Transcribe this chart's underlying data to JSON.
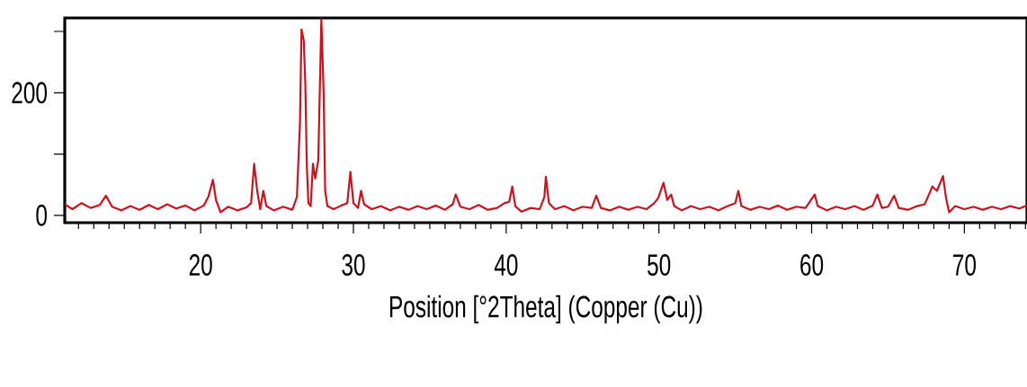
{
  "chart_data": {
    "type": "line",
    "xlabel": "Position [°2Theta] (Copper (Cu))",
    "xlim": [
      11.1,
      74.1
    ],
    "ylim": [
      -12,
      322
    ],
    "xticks": [
      {
        "value": 12,
        "label": null
      },
      {
        "value": 13,
        "label": null
      },
      {
        "value": 14,
        "label": null
      },
      {
        "value": 15,
        "label": null
      },
      {
        "value": 16,
        "label": null
      },
      {
        "value": 17,
        "label": null
      },
      {
        "value": 18,
        "label": null
      },
      {
        "value": 19,
        "label": null
      },
      20,
      {
        "value": 21,
        "label": null
      },
      {
        "value": 22,
        "label": null
      },
      {
        "value": 23,
        "label": null
      },
      {
        "value": 24,
        "label": null
      },
      {
        "value": 25,
        "label": null
      },
      {
        "value": 26,
        "label": null
      },
      {
        "value": 27,
        "label": null
      },
      {
        "value": 28,
        "label": null
      },
      {
        "value": 29,
        "label": null
      },
      30,
      {
        "value": 31,
        "label": null
      },
      {
        "value": 32,
        "label": null
      },
      {
        "value": 33,
        "label": null
      },
      {
        "value": 34,
        "label": null
      },
      {
        "value": 35,
        "label": null
      },
      {
        "value": 36,
        "label": null
      },
      {
        "value": 37,
        "label": null
      },
      {
        "value": 38,
        "label": null
      },
      {
        "value": 39,
        "label": null
      },
      40,
      {
        "value": 41,
        "label": null
      },
      {
        "value": 42,
        "label": null
      },
      {
        "value": 43,
        "label": null
      },
      {
        "value": 44,
        "label": null
      },
      {
        "value": 45,
        "label": null
      },
      {
        "value": 46,
        "label": null
      },
      {
        "value": 47,
        "label": null
      },
      {
        "value": 48,
        "label": null
      },
      {
        "value": 49,
        "label": null
      },
      50,
      {
        "value": 51,
        "label": null
      },
      {
        "value": 52,
        "label": null
      },
      {
        "value": 53,
        "label": null
      },
      {
        "value": 54,
        "label": null
      },
      {
        "value": 55,
        "label": null
      },
      {
        "value": 56,
        "label": null
      },
      {
        "value": 57,
        "label": null
      },
      {
        "value": 58,
        "label": null
      },
      {
        "value": 59,
        "label": null
      },
      60,
      {
        "value": 61,
        "label": null
      },
      {
        "value": 62,
        "label": null
      },
      {
        "value": 63,
        "label": null
      },
      {
        "value": 64,
        "label": null
      },
      {
        "value": 65,
        "label": null
      },
      {
        "value": 66,
        "label": null
      },
      {
        "value": 67,
        "label": null
      },
      {
        "value": 68,
        "label": null
      },
      {
        "value": 69,
        "label": null
      },
      70,
      {
        "value": 71,
        "label": null
      },
      {
        "value": 72,
        "label": null
      },
      {
        "value": 73,
        "label": null
      },
      {
        "value": 74,
        "label": null
      }
    ],
    "yticks": [
      0,
      {
        "value": 100,
        "label": null
      },
      200,
      {
        "value": 300,
        "label": null
      }
    ],
    "series": [
      {
        "color": "#c8141e",
        "x": [
          11.1,
          11.6,
          12.2,
          12.8,
          13.4,
          13.8,
          14.2,
          14.8,
          15.4,
          16.0,
          16.6,
          17.2,
          17.8,
          18.4,
          19.0,
          19.6,
          20.2,
          20.5,
          20.8,
          21.0,
          21.3,
          21.8,
          22.4,
          23.0,
          23.3,
          23.5,
          23.7,
          23.9,
          24.1,
          24.3,
          24.8,
          25.4,
          26.0,
          26.3,
          26.5,
          26.6,
          26.75,
          26.85,
          26.95,
          27.05,
          27.2,
          27.35,
          27.5,
          27.7,
          27.9,
          28.05,
          28.15,
          28.3,
          28.7,
          29.2,
          29.6,
          29.8,
          30.0,
          30.3,
          30.5,
          30.7,
          31.2,
          31.8,
          32.4,
          33.0,
          33.6,
          34.2,
          34.8,
          35.4,
          36.0,
          36.5,
          36.7,
          37.0,
          37.6,
          38.2,
          38.8,
          39.4,
          39.9,
          40.2,
          40.4,
          40.6,
          41.0,
          41.6,
          42.2,
          42.5,
          42.6,
          42.8,
          43.2,
          43.8,
          44.4,
          45.0,
          45.6,
          45.9,
          46.2,
          46.8,
          47.4,
          48.0,
          48.6,
          49.2,
          49.7,
          49.95,
          50.3,
          50.55,
          50.8,
          51.0,
          51.5,
          52.1,
          52.7,
          53.3,
          53.9,
          54.5,
          55.0,
          55.2,
          55.4,
          56.0,
          56.6,
          57.2,
          57.8,
          58.4,
          59.0,
          59.6,
          60.2,
          60.4,
          61.0,
          61.6,
          62.2,
          62.8,
          63.4,
          64.0,
          64.3,
          64.6,
          65.0,
          65.4,
          65.7,
          66.3,
          66.9,
          67.4,
          67.7,
          67.9,
          68.2,
          68.6,
          68.8,
          69.0,
          69.4,
          70.0,
          70.6,
          71.2,
          71.8,
          72.4,
          73.0,
          73.6,
          74.1
        ],
        "values": [
          18,
          10,
          20,
          12,
          17,
          32,
          14,
          8,
          15,
          9,
          17,
          10,
          18,
          11,
          16,
          8,
          16,
          30,
          58,
          25,
          5,
          14,
          8,
          13,
          20,
          84,
          40,
          10,
          40,
          15,
          8,
          14,
          9,
          30,
          150,
          303,
          285,
          215,
          80,
          20,
          15,
          84,
          60,
          90,
          320,
          200,
          40,
          15,
          10,
          16,
          20,
          71,
          20,
          12,
          40,
          18,
          10,
          15,
          8,
          14,
          9,
          15,
          10,
          16,
          9,
          18,
          34,
          14,
          10,
          17,
          9,
          12,
          20,
          22,
          47,
          15,
          6,
          12,
          10,
          30,
          63,
          20,
          10,
          15,
          8,
          14,
          12,
          32,
          12,
          8,
          14,
          9,
          14,
          10,
          20,
          28,
          53,
          25,
          34,
          15,
          8,
          15,
          10,
          14,
          8,
          15,
          20,
          40,
          15,
          9,
          14,
          10,
          16,
          9,
          14,
          12,
          34,
          15,
          8,
          14,
          10,
          15,
          9,
          16,
          34,
          12,
          14,
          32,
          12,
          9,
          15,
          18,
          35,
          47,
          40,
          64,
          28,
          5,
          15,
          10,
          14,
          9,
          14,
          10,
          15,
          11,
          16
        ]
      }
    ]
  }
}
